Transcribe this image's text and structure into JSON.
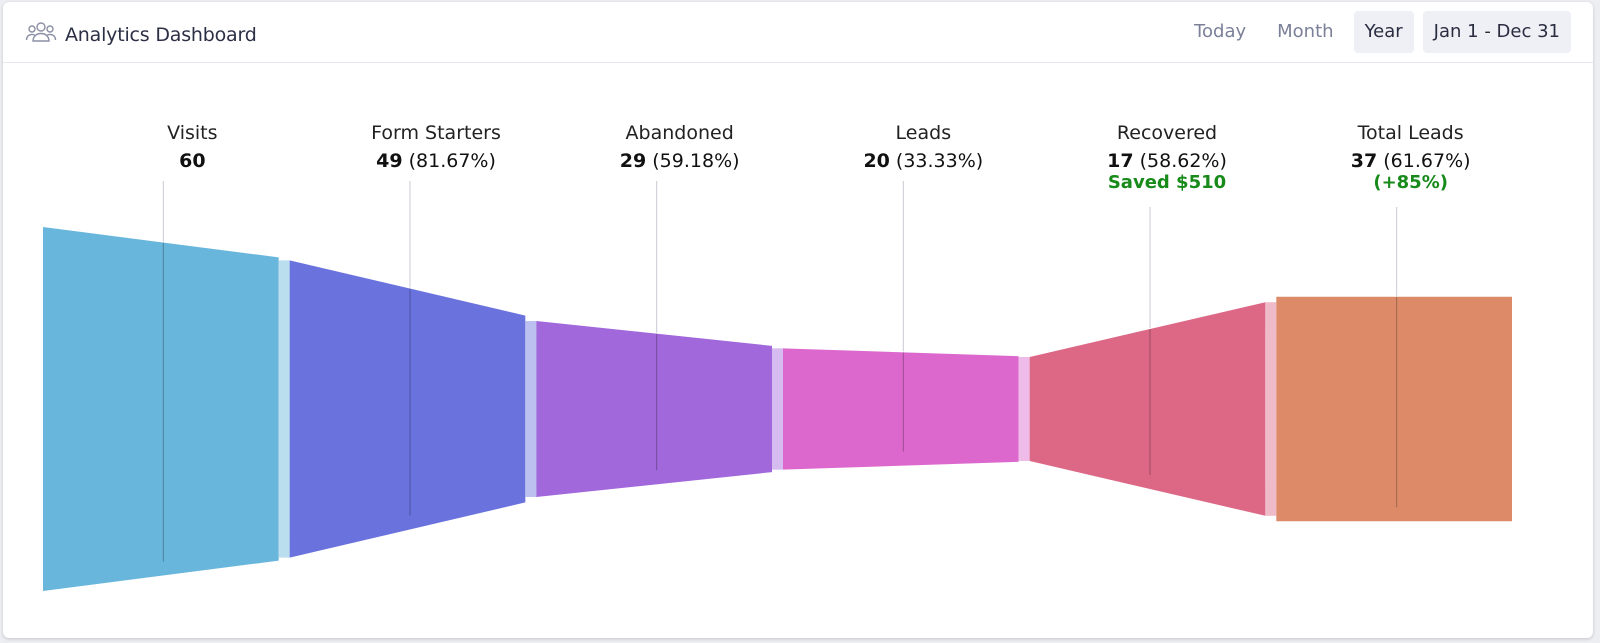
{
  "header": {
    "title": "Analytics Dashboard",
    "icon": "users-group-icon",
    "controls": {
      "today": "Today",
      "month": "Month",
      "year": "Year",
      "range": "Jan 1 - Dec 31"
    },
    "active_control": "year"
  },
  "chart_data": {
    "type": "funnel",
    "title": "",
    "stages": [
      {
        "name": "Visits",
        "value": 60,
        "percent": "",
        "extra": "",
        "color": "#68b6dc"
      },
      {
        "name": "Form Starters",
        "value": 49,
        "percent": "(81.67%)",
        "extra": "",
        "color": "#6a72de"
      },
      {
        "name": "Abandoned",
        "value": 29,
        "percent": "(59.18%)",
        "extra": "",
        "color": "#a168dc"
      },
      {
        "name": "Leads",
        "value": 20,
        "percent": "(33.33%)",
        "extra": "",
        "color": "#dc68ce"
      },
      {
        "name": "Recovered",
        "value": 17,
        "percent": "(58.62%)",
        "extra": "Saved $510",
        "color": "#dc6886"
      },
      {
        "name": "Total Leads",
        "value": 37,
        "percent": "(61.67%)",
        "extra": "(+85%)",
        "color": "#dc8a68"
      }
    ]
  }
}
